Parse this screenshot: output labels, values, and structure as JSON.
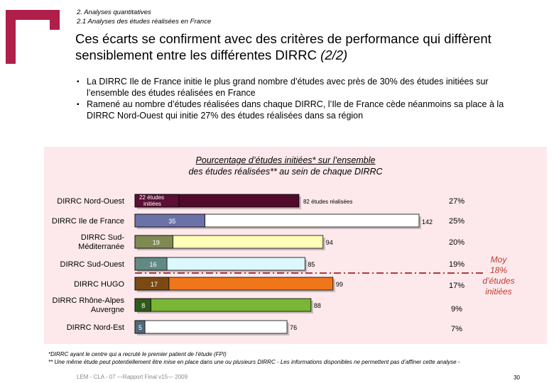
{
  "header": {
    "breadcrumb_1": "2. Analyses quantitatives",
    "breadcrumb_2": "2.1 Analyses des études réalisées en France",
    "title_main": "Ces écarts se confirment avec des critères de performance qui diffèrent sensiblement entre les différentes DIRRC",
    "title_suffix": "(2/2)"
  },
  "bullets": [
    "La DIRRC Ile de France initie le plus grand nombre d’études avec près de 30% des études initiées sur l’ensemble des études réalisées en France",
    "Ramené au nombre d’études réalisées dans chaque DIRRC, l’Ile de France cède néanmoins sa place à la DIRRC Nord-Ouest qui initie 27% des études réalisées dans sa région"
  ],
  "chart_data": {
    "type": "bar",
    "title_line1": "Pourcentage d’études initiées* sur l’ensemble",
    "title_line2": "des études réalisées** au sein de chaque DIRRC",
    "categories": [
      "DIRRC Nord-Ouest",
      "DIRRC Ile de France",
      "DIRRC Sud-Méditerranée",
      "DIRRC Sud-Ouest",
      "DIRRC HUGO",
      "DIRRC Rhône-Alpes Auvergne",
      "DIRRC Nord-Est"
    ],
    "series": [
      {
        "name": "études réalisées",
        "values": [
          82,
          142,
          94,
          85,
          99,
          88,
          76
        ]
      },
      {
        "name": "études initiées",
        "values": [
          22,
          35,
          19,
          16,
          17,
          8,
          5
        ]
      }
    ],
    "percent_labels": [
      "27%",
      "25%",
      "20%",
      "19%",
      "17%",
      "9%",
      "7%"
    ],
    "annotations": {
      "first_initiated_suffix": "études initiées",
      "first_realised_suffix": "études réalisées"
    },
    "average": {
      "value_percent": 18,
      "label_line1": "Moy",
      "label_line2": "18%",
      "label_line3": "d’études",
      "label_line4": "initiées"
    },
    "colors": {
      "realised": [
        "#520a2a",
        "#ffffff",
        "#ffffb8",
        "#dcf8fc",
        "#f0761a",
        "#7ab636",
        "#ffffff"
      ],
      "initiated": [
        "#5a0f33",
        "#6a72a8",
        "#7f8a52",
        "#618a84",
        "#7b4a12",
        "#2f5a1c",
        "#4f6a7c"
      ],
      "average_line": "#b03a3a",
      "average_text": "#c0392b"
    },
    "xlim": [
      0,
      142
    ]
  },
  "footnotes": {
    "line1": "*DIRRC ayant le centre qui a recruté le premier patient de l’étude (FPI)",
    "line2": "** Une même étude peut potentiellement être mise en place dans une ou plusieurs DIRRC - Les informations disponibles ne permettent pas d’affiner cette analyse -"
  },
  "footer": {
    "text": "LEM - CLA - 07 —Rapport Final v15— 2009",
    "page": "30"
  }
}
